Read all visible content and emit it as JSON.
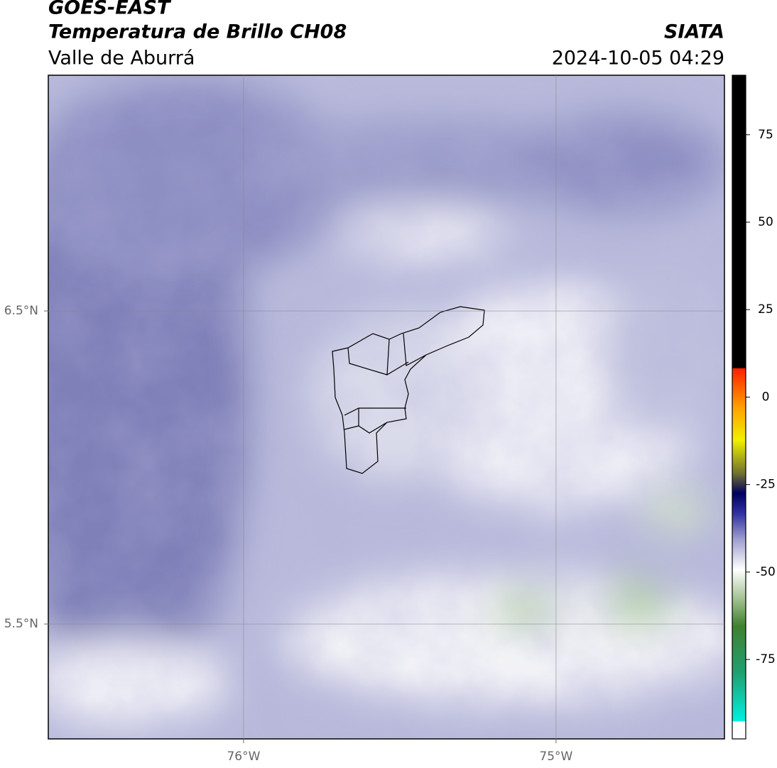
{
  "header": {
    "title": "GOES-EAST",
    "subtitle": "Temperatura de Brillo CH08",
    "source": "SIATA",
    "region": "Valle de Aburrá",
    "datetime": "2024-10-05 04:29"
  },
  "map": {
    "lon_range": [
      -76.625,
      -74.461
    ],
    "lat_range": [
      5.133,
      7.253
    ],
    "lon_ticks": [
      {
        "value": -76,
        "label": "76°W"
      },
      {
        "value": -75,
        "label": "75°W"
      }
    ],
    "lat_ticks": [
      {
        "value": 6.5,
        "label": "6.5°N"
      },
      {
        "value": 5.5,
        "label": "5.5°N"
      }
    ]
  },
  "colorbar": {
    "range": [
      -97.7,
      92
    ],
    "ticks": [
      75,
      50,
      25,
      0,
      -25,
      -50,
      -75
    ]
  }
}
